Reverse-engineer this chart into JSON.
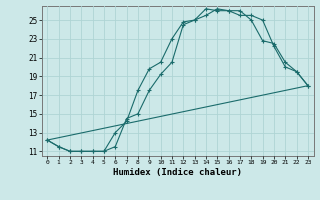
{
  "xlabel": "Humidex (Indice chaleur)",
  "bg_color": "#cce8e8",
  "line_color": "#1a6b6b",
  "xlim": [
    -0.5,
    23.5
  ],
  "ylim": [
    10.5,
    26.5
  ],
  "xticks": [
    0,
    1,
    2,
    3,
    4,
    5,
    6,
    7,
    8,
    9,
    10,
    11,
    12,
    13,
    14,
    15,
    16,
    17,
    18,
    19,
    20,
    21,
    22,
    23
  ],
  "yticks": [
    11,
    13,
    15,
    17,
    19,
    21,
    23,
    25
  ],
  "grid_color": "#afd4d4",
  "curve1_x": [
    0,
    1,
    2,
    3,
    4,
    5,
    6,
    7,
    8,
    9,
    10,
    11,
    12,
    13,
    14,
    15,
    16,
    17,
    18,
    19,
    20,
    21,
    22,
    23
  ],
  "curve1_y": [
    12.2,
    11.5,
    11.0,
    11.0,
    11.0,
    11.0,
    13.0,
    14.2,
    17.5,
    19.8,
    20.5,
    23.0,
    24.8,
    25.0,
    25.5,
    26.2,
    26.0,
    26.0,
    25.0,
    22.8,
    22.5,
    20.5,
    19.5,
    18.0
  ],
  "curve2_x": [
    0,
    1,
    2,
    3,
    4,
    5,
    6,
    7,
    8,
    9,
    10,
    11,
    12,
    13,
    14,
    15,
    16,
    17,
    18,
    19,
    20,
    21,
    22,
    23
  ],
  "curve2_y": [
    12.2,
    11.5,
    11.0,
    11.0,
    11.0,
    11.0,
    11.5,
    14.5,
    15.0,
    17.5,
    19.2,
    20.5,
    24.5,
    25.0,
    26.2,
    26.0,
    26.0,
    25.5,
    25.5,
    25.0,
    22.2,
    20.0,
    19.5,
    18.0
  ],
  "curve3_x": [
    0,
    23
  ],
  "curve3_y": [
    12.2,
    18.0
  ]
}
